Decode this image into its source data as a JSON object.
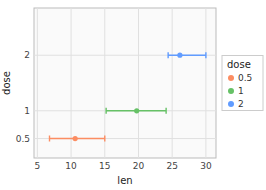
{
  "chart_data": {
    "type": "scatter",
    "xlabel": "len",
    "ylabel": "dose",
    "xlim": [
      4.5,
      31.5
    ],
    "xticks": [
      5,
      10,
      15,
      20,
      25,
      30
    ],
    "ylim": [
      0.15,
      2.85
    ],
    "yticks": [
      0.5,
      1,
      2
    ],
    "grid": true,
    "legend": "right",
    "legend_title": "dose",
    "marker": "circle",
    "series": [
      {
        "name": "0.5",
        "color": "#FC8D62",
        "x": [
          10.605
        ],
        "values": [
          0.5
        ],
        "lower": [
          6.8
        ],
        "upper": [
          15.0
        ]
      },
      {
        "name": "1",
        "color": "#66C166",
        "x": [
          19.735
        ],
        "values": [
          1
        ],
        "lower": [
          15.2
        ],
        "upper": [
          24.1
        ]
      },
      {
        "name": "2",
        "color": "#619CFF",
        "x": [
          26.14
        ],
        "values": [
          2
        ],
        "lower": [
          24.4
        ],
        "upper": [
          30.0
        ]
      }
    ]
  }
}
